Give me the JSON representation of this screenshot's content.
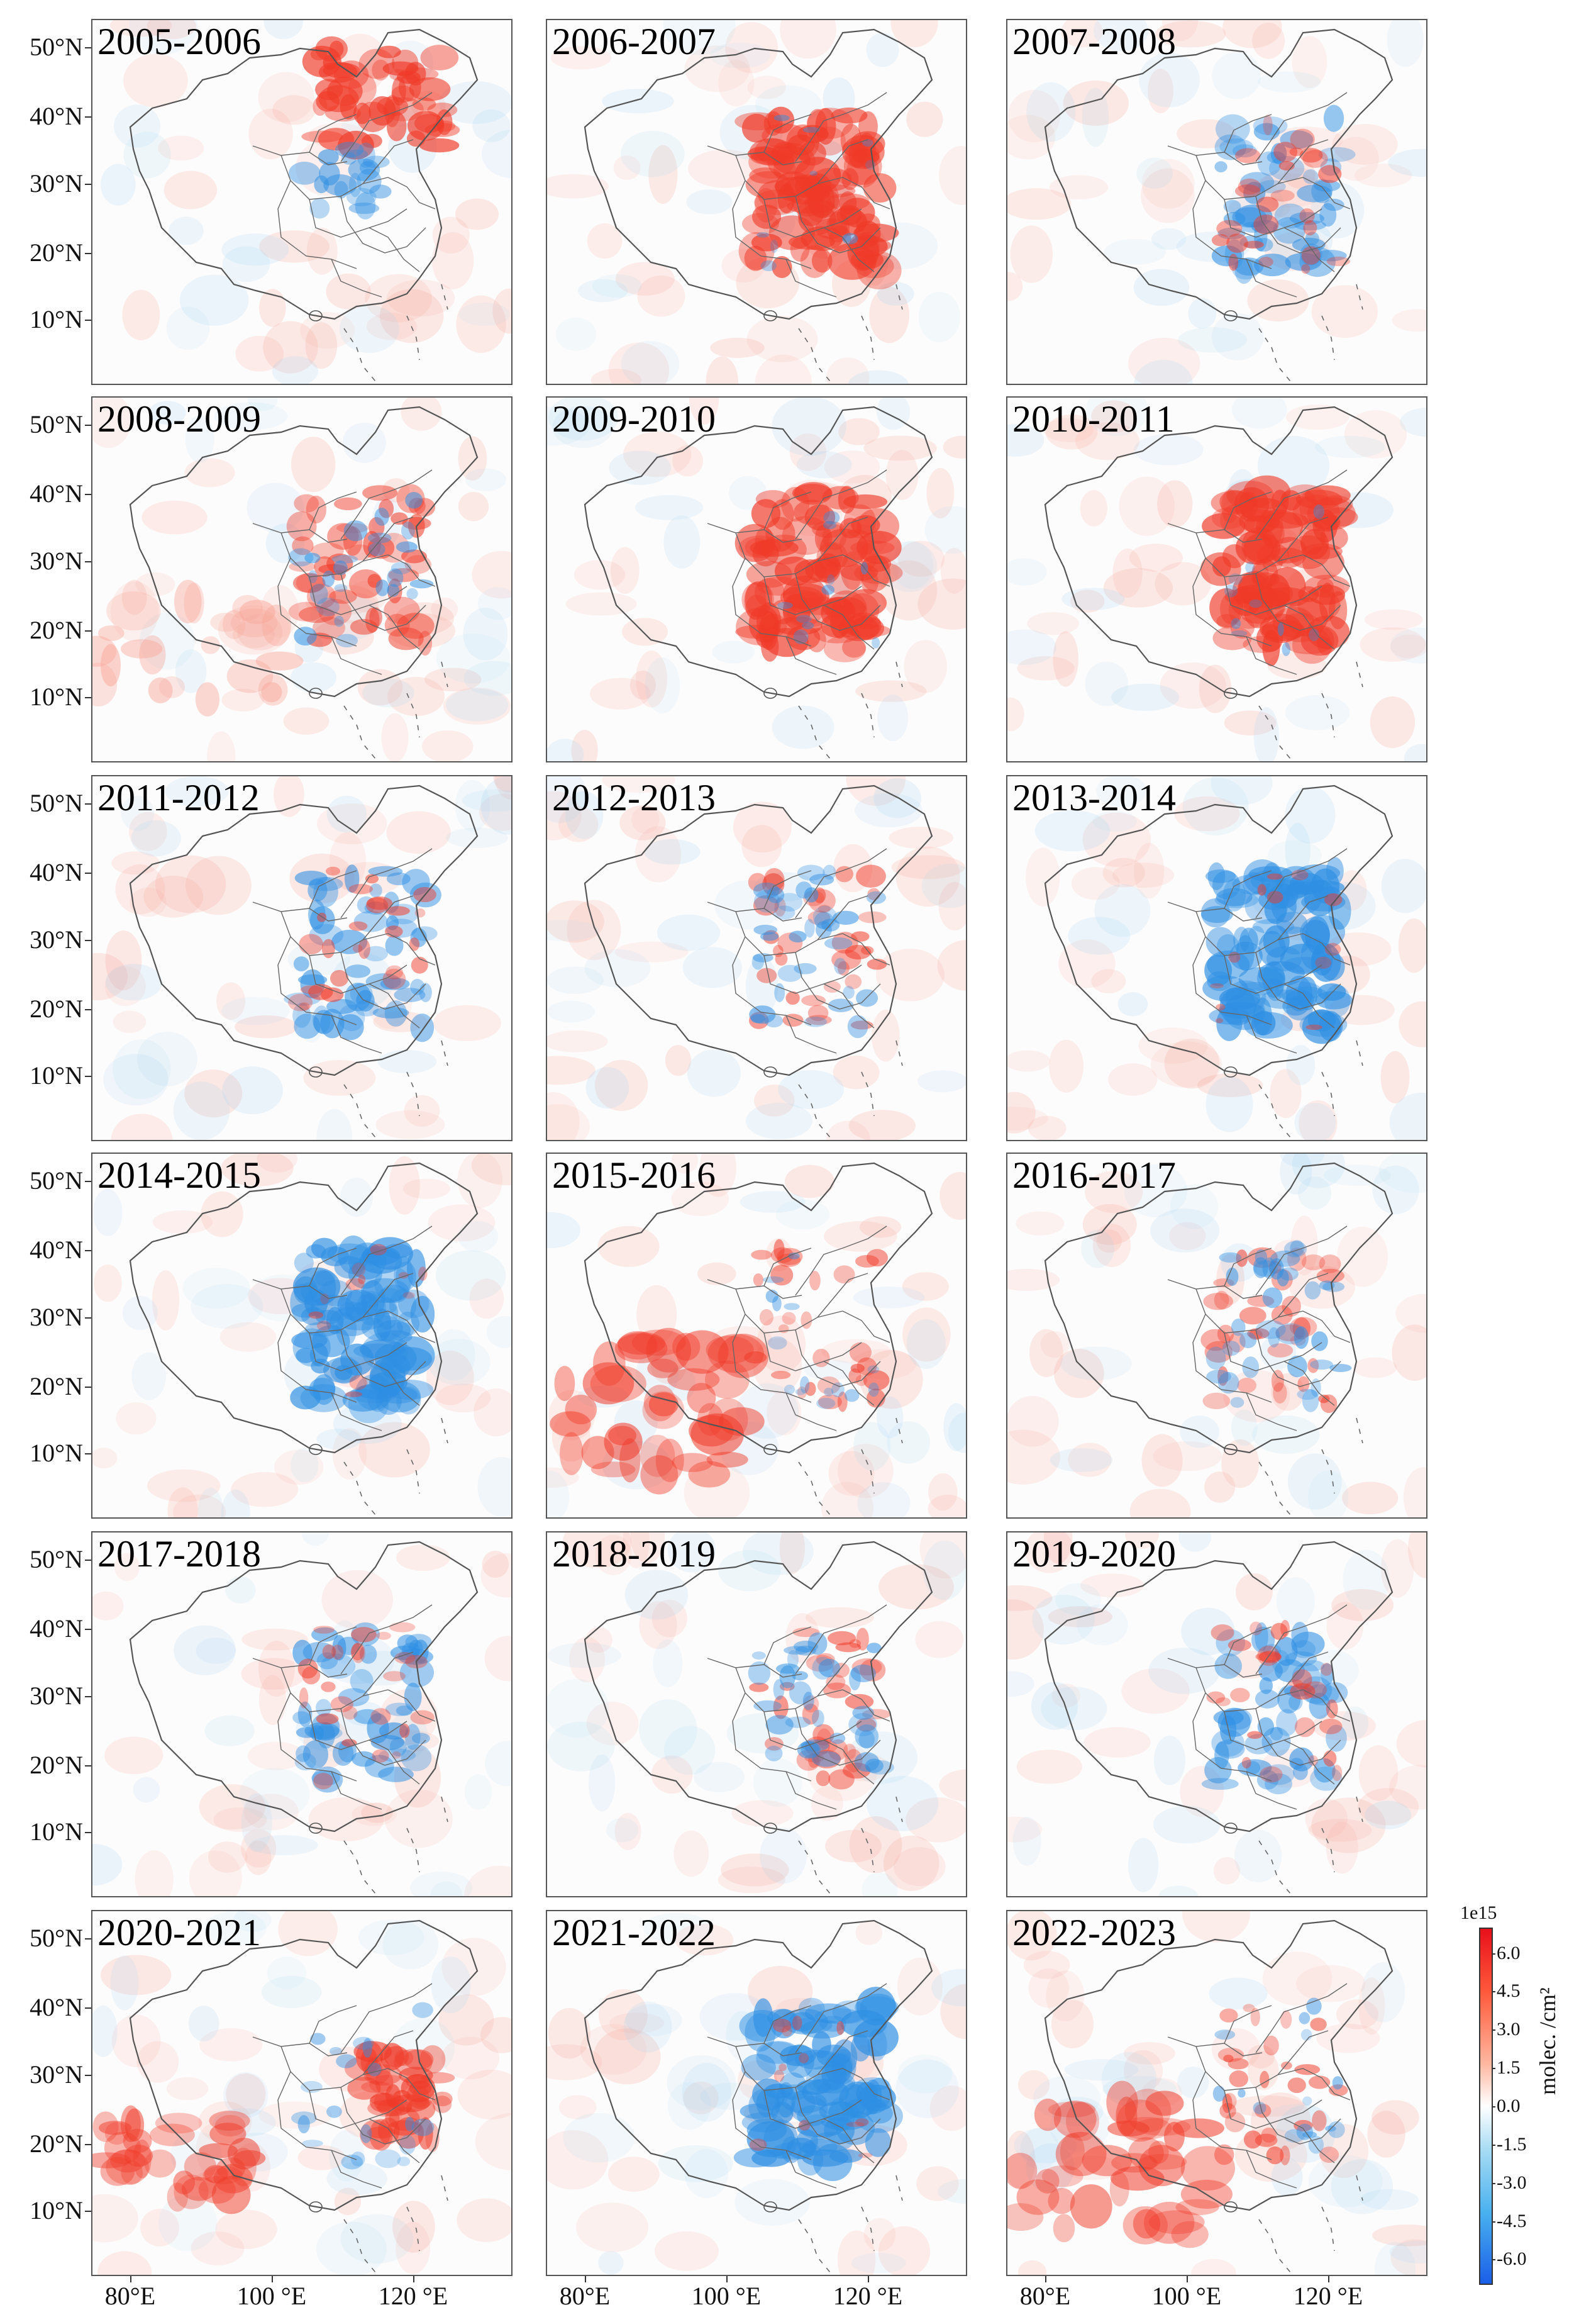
{
  "figure": {
    "panels": [
      {
        "title": "2005-2006",
        "pattern": "pos-north"
      },
      {
        "title": "2006-2007",
        "pattern": "pos-strong"
      },
      {
        "title": "2007-2008",
        "pattern": "neg-mixed"
      },
      {
        "title": "2008-2009",
        "pattern": "pos-mixed"
      },
      {
        "title": "2009-2010",
        "pattern": "pos-strong"
      },
      {
        "title": "2010-2011",
        "pattern": "pos-strong"
      },
      {
        "title": "2011-2012",
        "pattern": "neg-mixed"
      },
      {
        "title": "2012-2013",
        "pattern": "mixed"
      },
      {
        "title": "2013-2014",
        "pattern": "neg-strong"
      },
      {
        "title": "2014-2015",
        "pattern": "neg-strong"
      },
      {
        "title": "2015-2016",
        "pattern": "pos-south"
      },
      {
        "title": "2016-2017",
        "pattern": "mixed"
      },
      {
        "title": "2017-2018",
        "pattern": "neg-mixed"
      },
      {
        "title": "2018-2019",
        "pattern": "mixed"
      },
      {
        "title": "2019-2020",
        "pattern": "neg-mixed"
      },
      {
        "title": "2020-2021",
        "pattern": "pos-east"
      },
      {
        "title": "2021-2022",
        "pattern": "neg-strong"
      },
      {
        "title": "2022-2023",
        "pattern": "pos-south"
      }
    ],
    "lat_labels": [
      "50°N",
      "40°N",
      "30°N",
      "20°N",
      "10°N"
    ],
    "lon_labels": [
      "80°E",
      "100 °E",
      "120 °E"
    ],
    "colorbar": {
      "exponent": "1e15",
      "ticks": [
        "6.0",
        "4.5",
        "3.0",
        "1.5",
        "0.0",
        "-1.5",
        "-3.0",
        "-4.5",
        "-6.0"
      ],
      "label": "molec. /cm²",
      "range": [
        -7,
        7
      ],
      "colors": {
        "positive": "#e8101a",
        "zero": "#ffffff",
        "negative": "#1a5ee8"
      }
    }
  }
}
